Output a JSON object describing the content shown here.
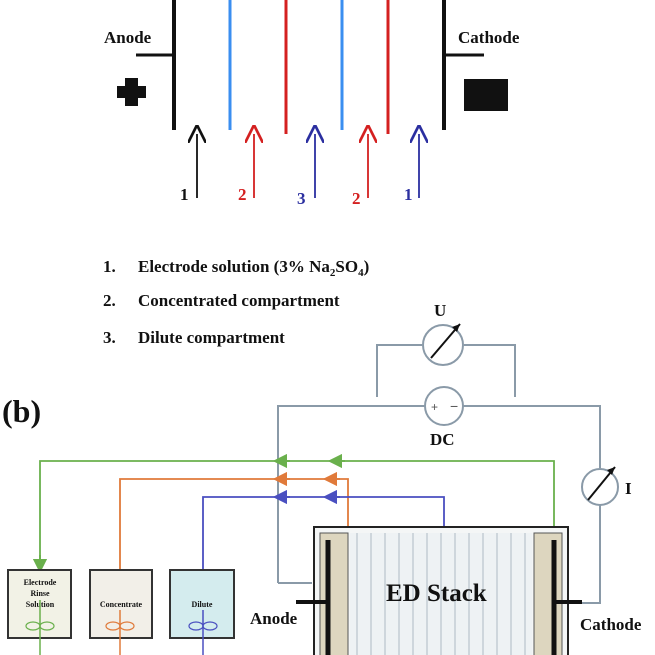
{
  "top_diagram": {
    "anode_label": "Anode",
    "cathode_label": "Cathode",
    "stream_numbers": [
      "1",
      "2",
      "3",
      "2",
      "1"
    ],
    "legend": [
      {
        "num": "1.",
        "text": "Electrode solution (3% Na",
        "sub1": "2",
        "mid": "SO",
        "sub2": "4",
        "end": ")"
      },
      {
        "num": "2.",
        "text": "Concentrated compartment"
      },
      {
        "num": "3.",
        "text": "Dilute compartment"
      }
    ]
  },
  "bottom_diagram": {
    "panel_label": "(b)",
    "voltmeter_label": "U",
    "dc_label": "DC",
    "ammeter_label": "I",
    "stack_label": "ED Stack",
    "anode_label": "Anode",
    "cathode_label": "Cathode",
    "tank_electrode_line1": "Electrode",
    "tank_electrode_line2": "Rinse",
    "tank_electrode_line3": "Solution",
    "tank_concentrate": "Concentrate",
    "tank_dilute": "Dilute"
  },
  "colors": {
    "black": "#111111",
    "blue": "#3a8ef0",
    "red": "#d42020",
    "dark_blue": "#2b2fa0",
    "green": "#6ab04c",
    "orange": "#e07a3a",
    "purple_blue": "#4a4fc0",
    "wire": "#8a9aa8"
  }
}
